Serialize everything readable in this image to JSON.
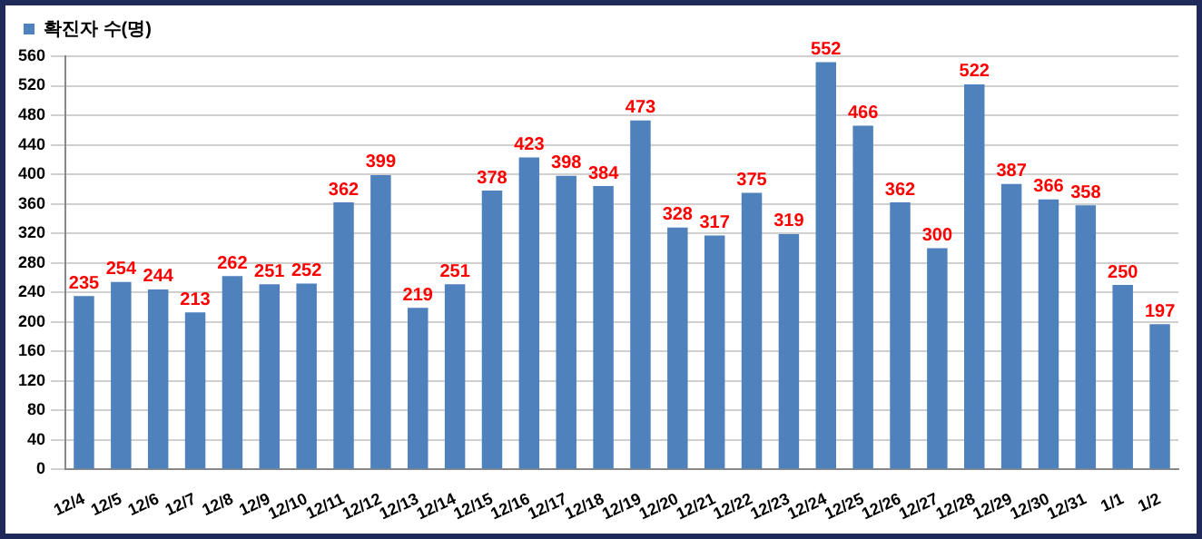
{
  "chart_data": {
    "type": "bar",
    "categories": [
      "12/4",
      "12/5",
      "12/6",
      "12/7",
      "12/8",
      "12/9",
      "12/10",
      "12/11",
      "12/12",
      "12/13",
      "12/14",
      "12/15",
      "12/16",
      "12/17",
      "12/18",
      "12/19",
      "12/20",
      "12/21",
      "12/22",
      "12/23",
      "12/24",
      "12/25",
      "12/26",
      "12/27",
      "12/28",
      "12/29",
      "12/30",
      "12/31",
      "1/1",
      "1/2"
    ],
    "series": [
      {
        "name": "확진자 수(명)",
        "color": "#4f81bd",
        "values": [
          235,
          254,
          244,
          213,
          262,
          251,
          252,
          362,
          399,
          219,
          251,
          378,
          423,
          398,
          384,
          473,
          328,
          317,
          375,
          319,
          552,
          466,
          362,
          300,
          522,
          387,
          366,
          358,
          250,
          197
        ]
      }
    ],
    "ylim": [
      0,
      560
    ],
    "yticks": [
      0,
      40,
      80,
      120,
      160,
      200,
      240,
      280,
      320,
      360,
      400,
      440,
      480,
      520,
      560
    ],
    "grid": "y",
    "legend": "top left",
    "data_labels": true
  }
}
